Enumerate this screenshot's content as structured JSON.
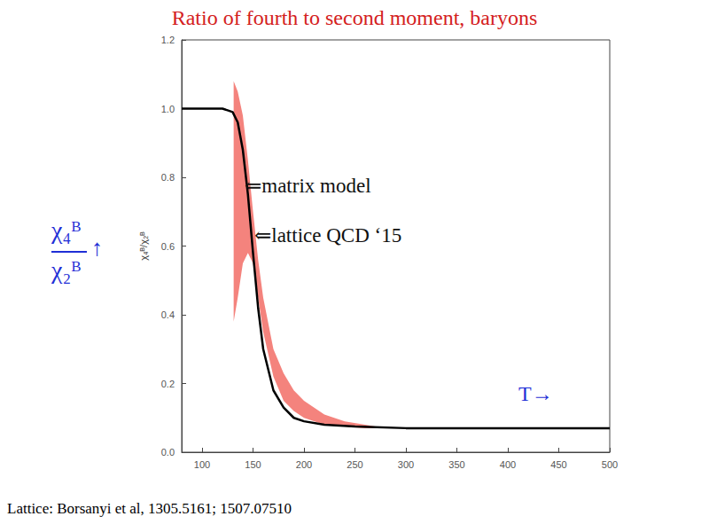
{
  "chart_data": {
    "type": "line",
    "title": "Ratio of fourth to second moment, baryons",
    "y_label": "χ₄ᴮ/χ₂ᴮ",
    "x_label": "T→",
    "annotations": [
      "↑"
    ],
    "source": "Lattice: Borsanyi et al, 1305.5161; 1507.07510",
    "xlim": [
      80,
      500
    ],
    "xticks": [
      100,
      150,
      200,
      250,
      300,
      350,
      400,
      450,
      500
    ],
    "ylim": [
      0,
      1.2
    ],
    "yticks": [
      {
        "value": 0,
        "label": "0.0"
      },
      0.2,
      0.4,
      0.6,
      0.8,
      {
        "value": 1,
        "label": "1.0"
      },
      1.2
    ],
    "grid": false,
    "series": [
      {
        "type": "band",
        "color": "#f4837d",
        "annotation": "⇐lattice QCD ‘15",
        "x": [
          131,
          135,
          140,
          145,
          150,
          155,
          160,
          170,
          180,
          190,
          200,
          220,
          240,
          260,
          270
        ],
        "lower": [
          0.38,
          0.45,
          0.55,
          0.58,
          0.55,
          0.45,
          0.35,
          0.22,
          0.15,
          0.12,
          0.1,
          0.08,
          0.075,
          0.07,
          0.07
        ],
        "upper": [
          1.08,
          1.05,
          0.98,
          0.85,
          0.7,
          0.56,
          0.45,
          0.3,
          0.23,
          0.18,
          0.15,
          0.11,
          0.09,
          0.08,
          0.075
        ]
      },
      {
        "type": "line",
        "color": "#000000",
        "annotation": "⇐matrix model",
        "x": [
          80,
          120,
          125,
          130,
          135,
          140,
          145,
          150,
          155,
          160,
          170,
          180,
          190,
          200,
          220,
          250,
          300,
          500
        ],
        "values": [
          1.0,
          1.0,
          0.995,
          0.99,
          0.96,
          0.88,
          0.75,
          0.58,
          0.42,
          0.3,
          0.18,
          0.13,
          0.1,
          0.09,
          0.08,
          0.075,
          0.07,
          0.07
        ]
      }
    ]
  }
}
